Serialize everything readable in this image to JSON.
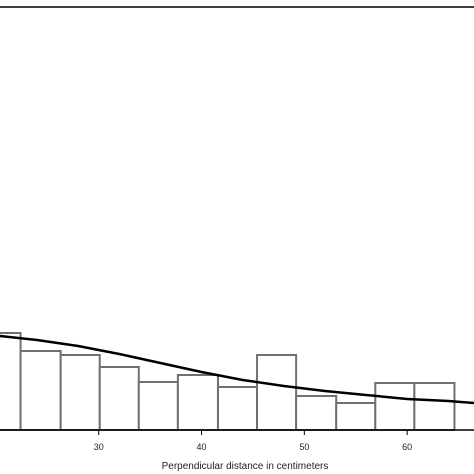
{
  "chart_data": {
    "type": "bar",
    "xlabel": "Perpendicular distance in centimeters",
    "ylabel": "",
    "title": "",
    "xlim": [
      20.4,
      66.5
    ],
    "ylim": [
      0,
      1
    ],
    "x_ticks": [
      30,
      40,
      50,
      60
    ],
    "grid": false,
    "bins": [
      {
        "x0": 18.6,
        "x1": 22.4,
        "value": 0.2425
      },
      {
        "x0": 22.4,
        "x1": 26.3,
        "value": 0.1975
      },
      {
        "x0": 26.3,
        "x1": 30.1,
        "value": 0.1875
      },
      {
        "x0": 30.1,
        "x1": 33.9,
        "value": 0.1575
      },
      {
        "x0": 33.9,
        "x1": 37.7,
        "value": 0.12
      },
      {
        "x0": 37.7,
        "x1": 41.6,
        "value": 0.1375
      },
      {
        "x0": 41.6,
        "x1": 45.4,
        "value": 0.1075
      },
      {
        "x0": 45.4,
        "x1": 49.2,
        "value": 0.1875
      },
      {
        "x0": 49.2,
        "x1": 53.1,
        "value": 0.085
      },
      {
        "x0": 53.1,
        "x1": 56.9,
        "value": 0.0675
      },
      {
        "x0": 56.9,
        "x1": 60.7,
        "value": 0.1175
      },
      {
        "x0": 60.7,
        "x1": 64.6,
        "value": 0.1175
      }
    ],
    "fitted_curve": {
      "x": [
        20.4,
        24,
        28,
        32,
        36,
        40,
        44,
        48,
        52,
        56,
        60,
        64,
        66.5
      ],
      "y": [
        0.235,
        0.225,
        0.21,
        0.19,
        0.1675,
        0.145,
        0.125,
        0.11,
        0.0975,
        0.0875,
        0.0775,
        0.0725,
        0.0675
      ]
    },
    "colors": {
      "bar_stroke": "#707070",
      "bar_fill": "#ffffff",
      "curve": "#000000",
      "axis": "#000000"
    }
  }
}
